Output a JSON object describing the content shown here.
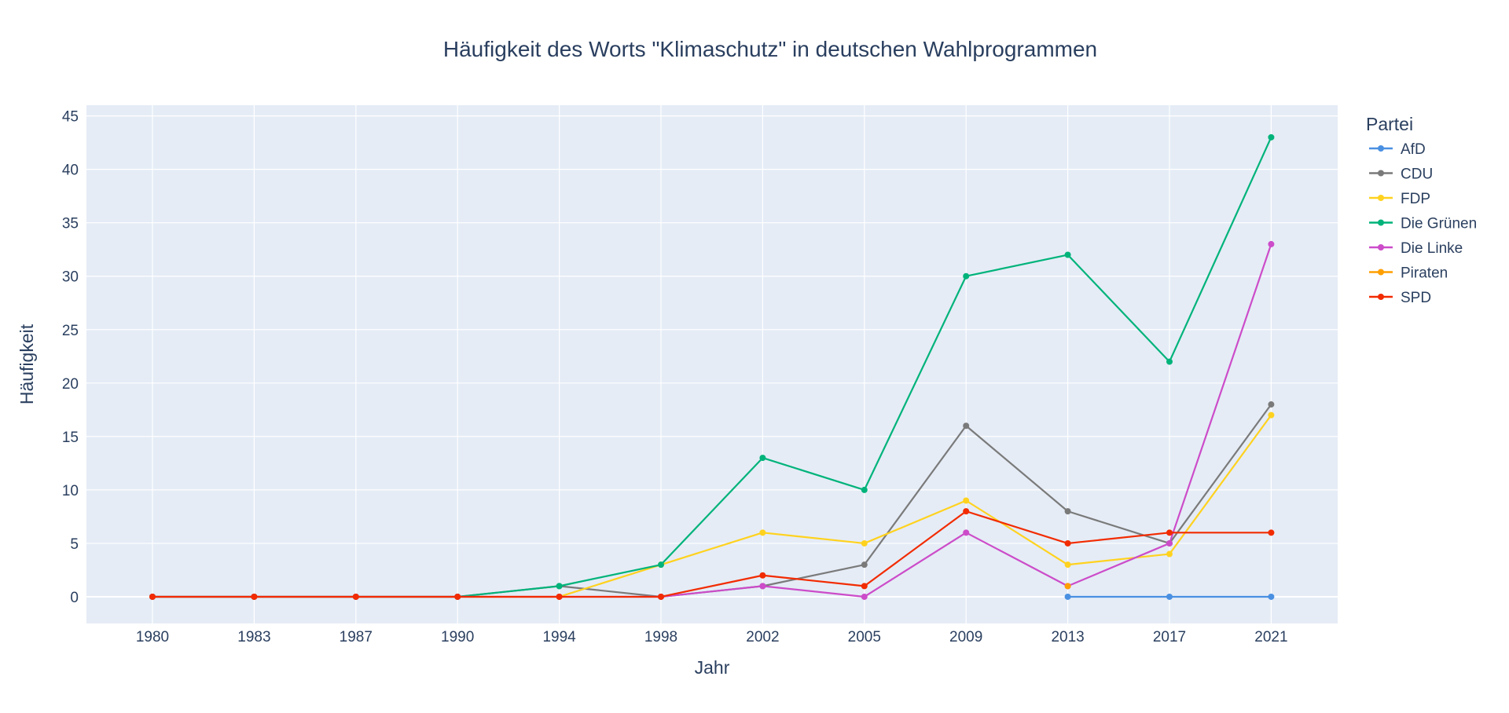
{
  "chart_data": {
    "type": "line",
    "title": "Häufigkeit des Worts \"Klimaschutz\" in deutschen Wahlprogrammen",
    "xlabel": "Jahr",
    "ylabel": "Häufigkeit",
    "categories": [
      "1980",
      "1983",
      "1987",
      "1990",
      "1994",
      "1998",
      "2002",
      "2005",
      "2009",
      "2013",
      "2017",
      "2021"
    ],
    "yticks": [
      "0",
      "5",
      "10",
      "15",
      "20",
      "25",
      "30",
      "35",
      "40",
      "45"
    ],
    "ylim": [
      -2.5,
      46
    ],
    "grid": true,
    "legend_title": "Partei",
    "legend_position": "top-right",
    "series": [
      {
        "name": "AfD",
        "color": "#4a90e2",
        "values": [
          null,
          null,
          null,
          null,
          null,
          null,
          null,
          null,
          null,
          0,
          0,
          0
        ]
      },
      {
        "name": "CDU",
        "color": "#7a7a7a",
        "values": [
          0,
          0,
          0,
          0,
          1,
          0,
          1,
          3,
          16,
          8,
          5,
          18
        ]
      },
      {
        "name": "FDP",
        "color": "#ffd21f",
        "values": [
          0,
          0,
          0,
          0,
          0,
          3,
          6,
          5,
          9,
          3,
          4,
          17
        ]
      },
      {
        "name": "Die Grünen",
        "color": "#00b37a",
        "values": [
          0,
          0,
          0,
          0,
          1,
          3,
          13,
          10,
          30,
          32,
          22,
          43
        ]
      },
      {
        "name": "Die Linke",
        "color": "#cc4cc9",
        "values": [
          0,
          0,
          0,
          0,
          0,
          0,
          1,
          0,
          6,
          1,
          5,
          33
        ]
      },
      {
        "name": "Piraten",
        "color": "#ff9f00",
        "values": [
          null,
          null,
          null,
          null,
          null,
          null,
          null,
          null,
          null,
          1,
          null,
          null
        ]
      },
      {
        "name": "SPD",
        "color": "#f22b00",
        "values": [
          0,
          0,
          0,
          0,
          0,
          0,
          2,
          1,
          8,
          5,
          6,
          6
        ]
      }
    ]
  }
}
